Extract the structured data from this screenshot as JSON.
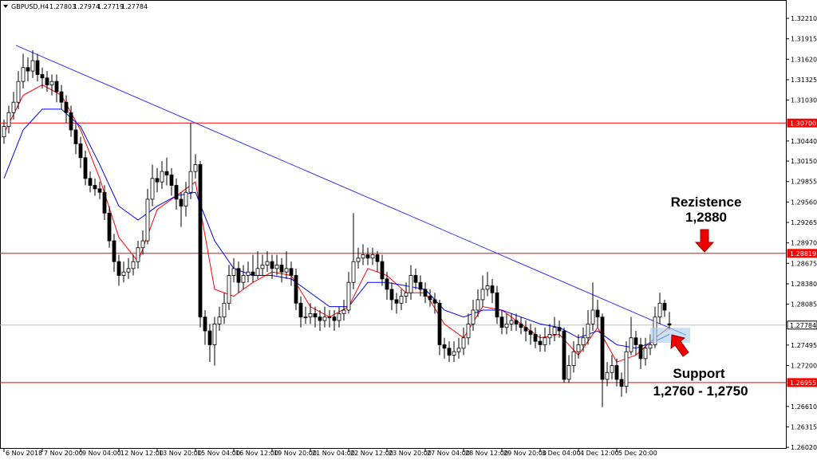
{
  "header": {
    "symbol": "GBPUSD,H4",
    "ohlc": [
      1.27803,
      1.27974,
      1.27719,
      1.27784
    ]
  },
  "chart_data": {
    "type": "candlestick",
    "open": [
      1.305,
      1.3065,
      1.3085,
      1.31,
      1.313,
      1.315,
      1.3145,
      1.316,
      1.314,
      1.3135,
      1.3125,
      1.313,
      1.3115,
      1.31,
      1.3085,
      1.306,
      1.304,
      1.302,
      1.299,
      1.298,
      1.2975,
      1.297,
      1.294,
      1.29,
      1.287,
      1.285,
      1.2855,
      1.286,
      1.287,
      1.289,
      1.29,
      1.296,
      1.299,
      1.2985,
      1.3,
      1.2995,
      1.298,
      1.296,
      1.295,
      1.297,
      1.3,
      1.301,
      1.279,
      1.277,
      1.275,
      1.278,
      1.279,
      1.281,
      1.285,
      1.286,
      1.284,
      1.285,
      1.2855,
      1.285,
      1.286,
      1.2865,
      1.287,
      1.286,
      1.2865,
      1.2855,
      1.286,
      1.285,
      1.281,
      1.279,
      1.279,
      1.2795,
      1.279,
      1.2785,
      1.279,
      1.279,
      1.2785,
      1.2795,
      1.28,
      1.284,
      1.287,
      1.2875,
      1.288,
      1.2875,
      1.288,
      1.287,
      1.2845,
      1.283,
      1.2815,
      1.281,
      1.282,
      1.2825,
      1.285,
      1.284,
      1.283,
      1.282,
      1.2815,
      1.281,
      1.275,
      1.2745,
      1.2735,
      1.274,
      1.2745,
      1.276,
      1.278,
      1.28,
      1.2815,
      1.283,
      1.2835,
      1.2825,
      1.279,
      1.2775,
      1.278,
      1.2785,
      1.278,
      1.2775,
      1.277,
      1.2765,
      1.2755,
      1.275,
      1.276,
      1.2765,
      1.2775,
      1.277,
      1.27,
      1.272,
      1.274,
      1.275,
      1.276,
      1.278,
      1.28,
      1.279,
      1.27,
      1.271,
      1.272,
      1.27,
      1.269,
      1.274,
      1.276,
      1.275,
      1.273,
      1.2745,
      1.275,
      1.279,
      1.281,
      1.27803
    ],
    "high": [
      1.3075,
      1.3095,
      1.3115,
      1.3145,
      1.317,
      1.3165,
      1.3175,
      1.317,
      1.315,
      1.3145,
      1.314,
      1.314,
      1.3125,
      1.311,
      1.3095,
      1.307,
      1.305,
      1.303,
      1.3,
      1.299,
      1.2985,
      1.298,
      1.295,
      1.291,
      1.288,
      1.287,
      1.2875,
      1.288,
      1.29,
      1.2915,
      1.2975,
      1.301,
      1.3005,
      1.3015,
      1.302,
      1.3005,
      1.299,
      1.297,
      1.2985,
      1.307,
      1.3025,
      1.3015,
      1.28,
      1.278,
      1.279,
      1.2805,
      1.2825,
      1.2865,
      1.2875,
      1.287,
      1.2865,
      1.287,
      1.288,
      1.2885,
      1.288,
      1.2885,
      1.288,
      1.288,
      1.2875,
      1.2885,
      1.287,
      1.286,
      1.282,
      1.2805,
      1.281,
      1.2805,
      1.28,
      1.2805,
      1.28,
      1.28,
      1.2805,
      1.2815,
      1.2855,
      1.294,
      1.289,
      1.2895,
      1.289,
      1.289,
      1.2885,
      1.288,
      1.2855,
      1.284,
      1.2825,
      1.283,
      1.284,
      1.2865,
      1.286,
      1.285,
      1.284,
      1.283,
      1.2825,
      1.2815,
      1.276,
      1.2755,
      1.2755,
      1.276,
      1.2775,
      1.2795,
      1.2815,
      1.283,
      1.285,
      1.2855,
      1.2845,
      1.2835,
      1.28,
      1.2795,
      1.2795,
      1.2795,
      1.279,
      1.2785,
      1.278,
      1.2775,
      1.2765,
      1.2775,
      1.278,
      1.279,
      1.2785,
      1.2775,
      1.2735,
      1.2755,
      1.2765,
      1.2775,
      1.28,
      1.284,
      1.2815,
      1.2795,
      1.2725,
      1.2735,
      1.273,
      1.271,
      1.2755,
      1.279,
      1.277,
      1.276,
      1.276,
      1.2765,
      1.2805,
      1.2825,
      1.2815,
      1.27974
    ],
    "low": [
      1.304,
      1.3055,
      1.3075,
      1.309,
      1.312,
      1.313,
      1.3135,
      1.313,
      1.312,
      1.3115,
      1.311,
      1.31,
      1.309,
      1.307,
      1.305,
      1.3025,
      1.3005,
      1.298,
      1.297,
      1.2965,
      1.296,
      1.293,
      1.289,
      1.2855,
      1.2835,
      1.284,
      1.2845,
      1.285,
      1.286,
      1.288,
      1.2895,
      1.295,
      1.297,
      1.2975,
      1.298,
      1.2965,
      1.2945,
      1.292,
      1.2935,
      1.296,
      1.299,
      1.2775,
      1.275,
      1.2725,
      1.272,
      1.277,
      1.278,
      1.28,
      1.284,
      1.2825,
      1.283,
      1.284,
      1.284,
      1.2845,
      1.285,
      1.2855,
      1.2845,
      1.285,
      1.284,
      1.2845,
      1.2835,
      1.28,
      1.2775,
      1.278,
      1.278,
      1.2775,
      1.277,
      1.2775,
      1.2775,
      1.277,
      1.2775,
      1.2785,
      1.2795,
      1.283,
      1.286,
      1.2865,
      1.2865,
      1.2865,
      1.2855,
      1.2835,
      1.2815,
      1.28,
      1.2795,
      1.28,
      1.281,
      1.2815,
      1.283,
      1.282,
      1.281,
      1.2805,
      1.2795,
      1.2735,
      1.273,
      1.2725,
      1.2725,
      1.273,
      1.2735,
      1.275,
      1.277,
      1.279,
      1.2805,
      1.282,
      1.281,
      1.278,
      1.2765,
      1.2765,
      1.277,
      1.277,
      1.2765,
      1.2755,
      1.275,
      1.2745,
      1.274,
      1.274,
      1.275,
      1.2755,
      1.276,
      1.2695,
      1.2695,
      1.271,
      1.273,
      1.274,
      1.275,
      1.277,
      1.2775,
      1.266,
      1.269,
      1.27,
      1.269,
      1.2675,
      1.268,
      1.2735,
      1.2735,
      1.2715,
      1.272,
      1.2735,
      1.2745,
      1.278,
      1.279,
      1.27719
    ],
    "close": [
      1.3065,
      1.3085,
      1.31,
      1.313,
      1.315,
      1.3145,
      1.316,
      1.314,
      1.3135,
      1.3125,
      1.313,
      1.3115,
      1.31,
      1.3085,
      1.306,
      1.304,
      1.302,
      1.299,
      1.298,
      1.2975,
      1.297,
      1.294,
      1.29,
      1.287,
      1.285,
      1.2855,
      1.286,
      1.287,
      1.289,
      1.29,
      1.296,
      1.299,
      1.2985,
      1.3,
      1.2995,
      1.298,
      1.296,
      1.295,
      1.297,
      1.3,
      1.301,
      1.279,
      1.277,
      1.275,
      1.278,
      1.279,
      1.281,
      1.285,
      1.286,
      1.284,
      1.285,
      1.2855,
      1.285,
      1.286,
      1.2865,
      1.287,
      1.286,
      1.2865,
      1.2855,
      1.286,
      1.285,
      1.281,
      1.279,
      1.279,
      1.2795,
      1.279,
      1.2785,
      1.279,
      1.279,
      1.2785,
      1.2795,
      1.28,
      1.284,
      1.287,
      1.2875,
      1.288,
      1.2875,
      1.288,
      1.287,
      1.2845,
      1.283,
      1.2815,
      1.281,
      1.282,
      1.2825,
      1.285,
      1.284,
      1.283,
      1.282,
      1.2815,
      1.281,
      1.275,
      1.2745,
      1.2735,
      1.274,
      1.2745,
      1.276,
      1.278,
      1.28,
      1.2815,
      1.283,
      1.2835,
      1.2825,
      1.279,
      1.2775,
      1.278,
      1.2785,
      1.278,
      1.2775,
      1.277,
      1.2765,
      1.2755,
      1.275,
      1.276,
      1.2765,
      1.2775,
      1.277,
      1.27,
      1.272,
      1.274,
      1.275,
      1.276,
      1.278,
      1.28,
      1.279,
      1.27,
      1.271,
      1.272,
      1.27,
      1.269,
      1.274,
      1.276,
      1.275,
      1.273,
      1.2745,
      1.275,
      1.279,
      1.281,
      1.28,
      1.27784
    ],
    "indicators": [
      {
        "color": "#ff0000",
        "x": [
          0,
          4,
          8,
          12,
          16,
          20,
          24,
          28,
          32,
          36,
          40,
          44,
          48,
          52,
          56,
          60,
          64,
          68,
          72,
          76,
          80,
          84,
          88,
          92,
          96,
          100,
          104,
          108,
          112,
          116,
          120,
          124,
          128,
          132,
          136,
          139
        ],
        "values": [
          1.3055,
          1.311,
          1.3125,
          1.311,
          1.306,
          1.299,
          1.2905,
          1.287,
          1.2945,
          1.2965,
          1.2985,
          1.283,
          1.282,
          1.284,
          1.2855,
          1.285,
          1.2805,
          1.279,
          1.2805,
          1.286,
          1.285,
          1.2825,
          1.2825,
          1.278,
          1.276,
          1.2805,
          1.28,
          1.278,
          1.276,
          1.2765,
          1.2735,
          1.2775,
          1.2725,
          1.2735,
          1.276,
          1.2775
        ]
      },
      {
        "color": "#0000ff",
        "x": [
          0,
          4,
          8,
          12,
          16,
          20,
          24,
          28,
          32,
          36,
          40,
          44,
          48,
          52,
          56,
          60,
          64,
          68,
          72,
          76,
          80,
          84,
          88,
          92,
          96,
          100,
          104,
          108,
          112,
          116,
          120,
          124,
          128,
          132,
          136,
          139
        ],
        "values": [
          1.299,
          1.306,
          1.309,
          1.309,
          1.3065,
          1.301,
          1.295,
          1.293,
          1.295,
          1.2965,
          1.297,
          1.29,
          1.286,
          1.285,
          1.285,
          1.2845,
          1.2825,
          1.2805,
          1.2805,
          1.284,
          1.284,
          1.2835,
          1.283,
          1.28,
          1.279,
          1.28,
          1.28,
          1.279,
          1.278,
          1.2775,
          1.276,
          1.277,
          1.275,
          1.2745,
          1.2755,
          1.2765
        ]
      }
    ],
    "trendline": {
      "color": "#3333ff",
      "x": [
        2.5,
        142.5
      ],
      "values": [
        1.3182,
        1.2764
      ]
    },
    "levels": [
      {
        "value": 1.307,
        "label": "1.30700",
        "color": "#ff0000"
      },
      {
        "value": 1.28819,
        "label": "1.28819",
        "color": "#ff0000"
      },
      {
        "value": 1.26955,
        "label": "1.26955",
        "color": "#ff0000"
      },
      {
        "value": 1.27784,
        "label": "1.27784",
        "color": "#c0c0c0"
      }
    ],
    "ylim": [
      1.25998,
      1.32475
    ],
    "yticks": [
      {
        "value": 1.3221,
        "label": "1.32210"
      },
      {
        "value": 1.31915,
        "label": "1.31915"
      },
      {
        "value": 1.3162,
        "label": "1.31620"
      },
      {
        "value": 1.31325,
        "label": "1.31325"
      },
      {
        "value": 1.3103,
        "label": "1.31030"
      },
      {
        "value": 1.3044,
        "label": "1.30440"
      },
      {
        "value": 1.3015,
        "label": "1.30150"
      },
      {
        "value": 1.29855,
        "label": "1.29855"
      },
      {
        "value": 1.2956,
        "label": "1.29560"
      },
      {
        "value": 1.29265,
        "label": "1.29265"
      },
      {
        "value": 1.2897,
        "label": "1.28970"
      },
      {
        "value": 1.28675,
        "label": "1.28675"
      },
      {
        "value": 1.2838,
        "label": "1.28380"
      },
      {
        "value": 1.28085,
        "label": "1.28085"
      },
      {
        "value": 1.27495,
        "label": "1.27495"
      },
      {
        "value": 1.272,
        "label": "1.27200"
      },
      {
        "value": 1.2661,
        "label": "1.26610"
      },
      {
        "value": 1.26315,
        "label": "1.26315"
      },
      {
        "value": 1.2602,
        "label": "1.26020"
      }
    ],
    "xticks": [
      {
        "value": 0,
        "label": "6 Nov 2018"
      },
      {
        "value": 8,
        "label": "7 Nov 20:00"
      },
      {
        "value": 16,
        "label": "9 Nov 04:00"
      },
      {
        "value": 24,
        "label": "12 Nov 12:00"
      },
      {
        "value": 32,
        "label": "13 Nov 20:00"
      },
      {
        "value": 40,
        "label": "15 Nov 04:00"
      },
      {
        "value": 48,
        "label": "16 Nov 12:00"
      },
      {
        "value": 56,
        "label": "19 Nov 20:00"
      },
      {
        "value": 64,
        "label": "21 Nov 04:00"
      },
      {
        "value": 72,
        "label": "22 Nov 12:00"
      },
      {
        "value": 80,
        "label": "23 Nov 20:00"
      },
      {
        "value": 88,
        "label": "27 Nov 04:00"
      },
      {
        "value": 96,
        "label": "28 Nov 12:00"
      },
      {
        "value": 104,
        "label": "29 Nov 20:00"
      },
      {
        "value": 112,
        "label": "3 Dec 04:00"
      },
      {
        "value": 120,
        "label": "4 Dec 12:00"
      },
      {
        "value": 128,
        "label": "5 Dec 20:00"
      }
    ],
    "annotations": {
      "resistance": {
        "title": "Rezistence",
        "value": "1,2880"
      },
      "support": {
        "title": "Support",
        "value": "1,2760 - 1,2750"
      }
    }
  }
}
